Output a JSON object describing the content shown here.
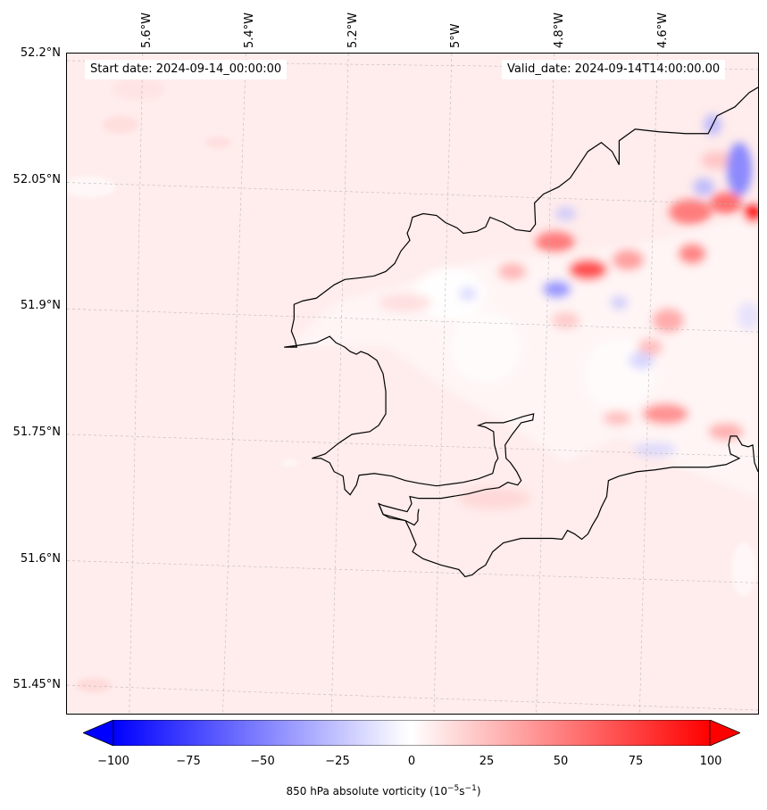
{
  "map": {
    "start_date": "Start date: 2024-09-14_00:00:00",
    "valid_date": "Valid_date: 2024-09-14T14:00:00.00",
    "lat_labels": [
      "52.2°N",
      "52.05°N",
      "51.9°N",
      "51.75°N",
      "51.6°N",
      "51.45°N"
    ],
    "lon_labels": [
      "5.6°W",
      "5.4°W",
      "5.2°W",
      "5°W",
      "4.8°W",
      "4.6°W"
    ],
    "background_color": "#ffecec",
    "coastline_color": "#000000"
  },
  "colorbar": {
    "ticks": [
      "−100",
      "−75",
      "−50",
      "−25",
      "0",
      "25",
      "50",
      "75",
      "100"
    ],
    "label_prefix": "850 hPa absolute vorticity (10",
    "label_exp1": "−5",
    "label_mid": "s",
    "label_exp2": "−1",
    "label_suffix": ")",
    "min_color": "#0000ff",
    "mid_color": "#ffffff",
    "max_color": "#ff0000"
  }
}
